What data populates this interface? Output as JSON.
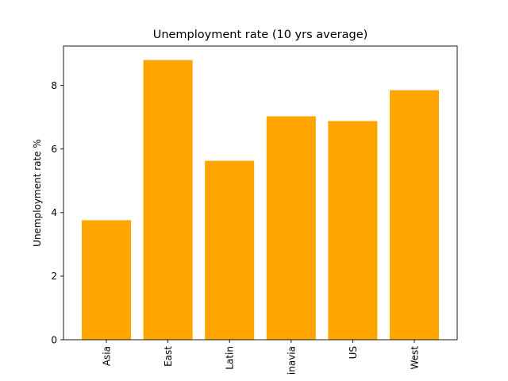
{
  "chart_data": {
    "type": "bar",
    "title": "Unemployment rate (10 yrs average)",
    "xlabel": "",
    "ylabel": "Unemployment rate %",
    "categories": [
      "Asia",
      "East",
      "Latin",
      "Scandinavia",
      "US",
      "West"
    ],
    "category_tick_text": [
      "Asia",
      "East",
      "Latin",
      "inavia",
      "US",
      "West"
    ],
    "values": [
      3.76,
      8.8,
      5.63,
      7.03,
      6.88,
      7.85
    ],
    "ylim": [
      0,
      9.24
    ],
    "yticks": [
      0,
      2,
      4,
      6,
      8
    ],
    "bar_color": "#ffa500",
    "grid": false,
    "legend": "none"
  }
}
